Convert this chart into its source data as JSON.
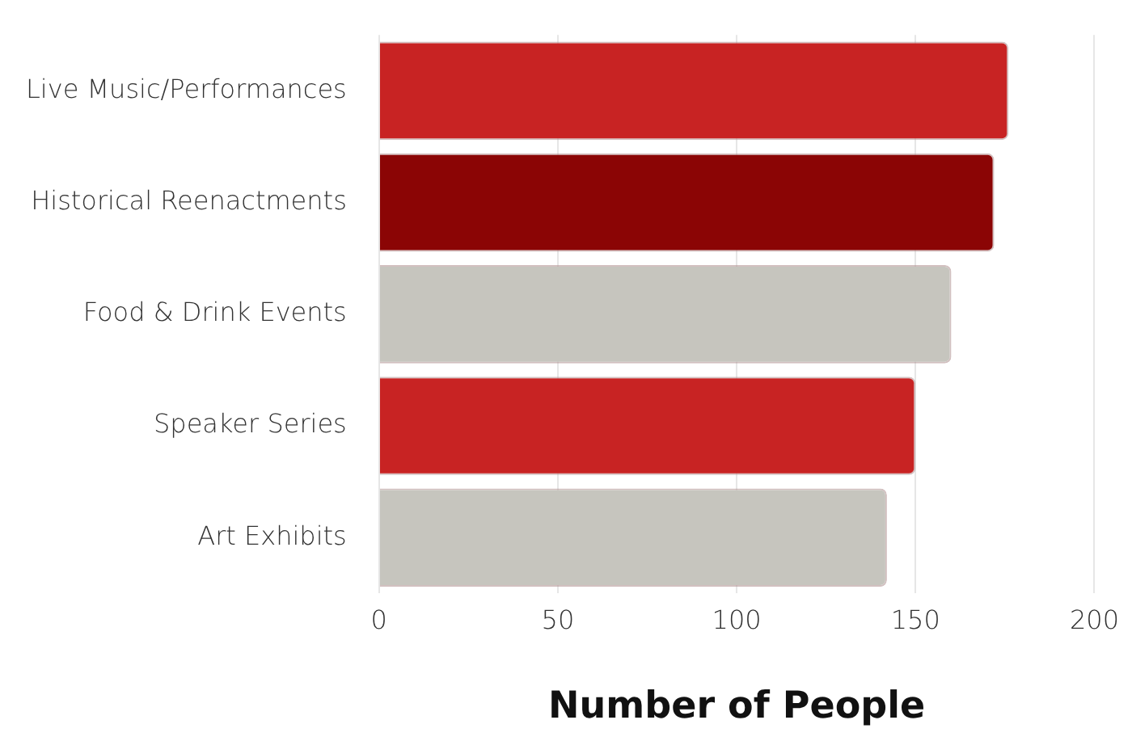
{
  "chart_data": {
    "type": "bar",
    "orientation": "horizontal",
    "xlabel": "Number of People",
    "categories": [
      "Live Music/Performances",
      "Historical Reenactments",
      "Food & Drink Events",
      "Speaker Series",
      "Art Exhibits"
    ],
    "values": [
      176,
      172,
      160,
      150,
      142
    ],
    "colors": [
      "#c82323",
      "#8b0505",
      "#c6c5be",
      "#c82323",
      "#c6c5be"
    ],
    "xlim": [
      0,
      200
    ],
    "xticks": [
      0,
      50,
      100,
      150,
      200
    ],
    "grid": "x",
    "legend": false
  }
}
